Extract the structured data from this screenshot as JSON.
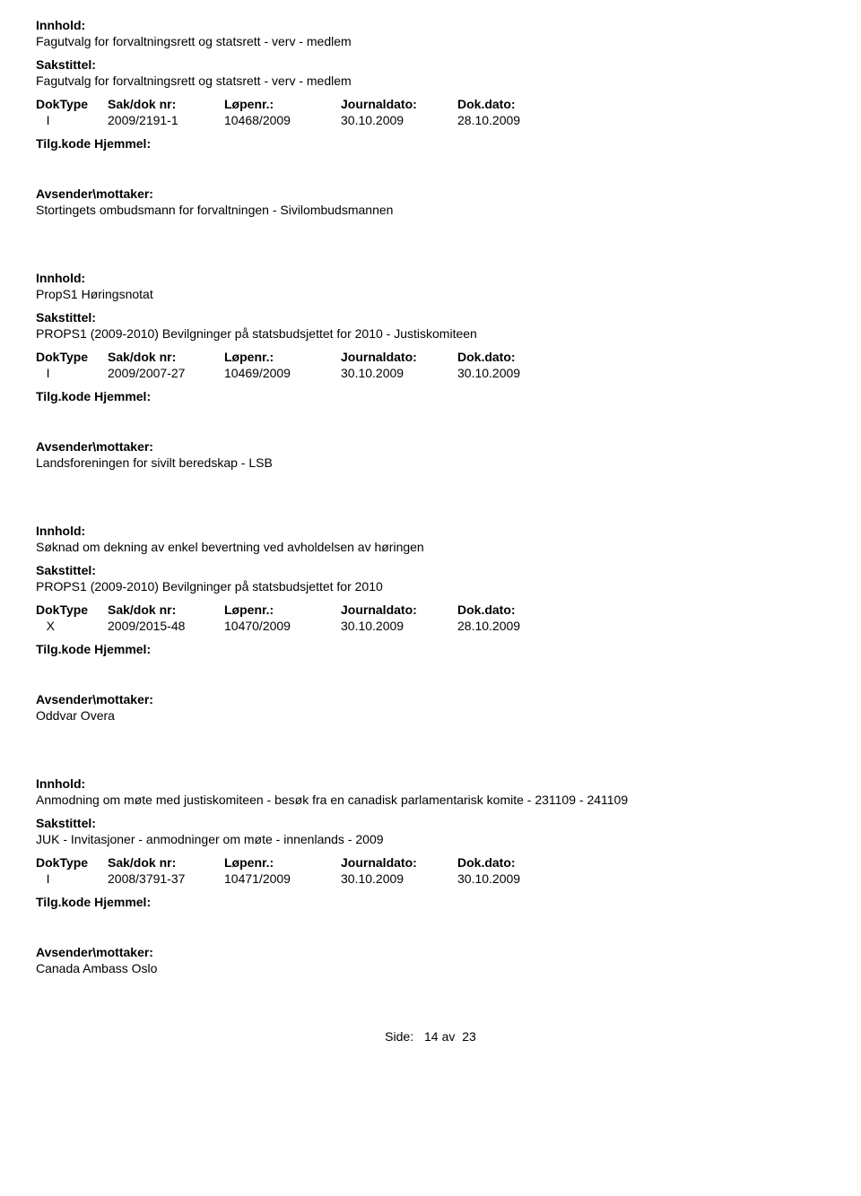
{
  "labels": {
    "innhold": "Innhold:",
    "sakstittel": "Sakstittel:",
    "doktype": "DokType",
    "sakdoknr": "Sak/dok nr:",
    "lopenr": "Løpenr.:",
    "journaldato": "Journaldato:",
    "dokdato": "Dok.dato:",
    "tilgkode": "Tilg.kode Hjemmel:",
    "avsender": "Avsender\\mottaker:",
    "side": "Side:",
    "av": "av"
  },
  "entries": [
    {
      "innhold": "Fagutvalg for forvaltningsrett og statsrett - verv - medlem",
      "sakstittel": "Fagutvalg for forvaltningsrett og statsrett - verv - medlem",
      "doktype": "I",
      "sakdoknr": "2009/2191-1",
      "lopenr": "10468/2009",
      "journaldato": "30.10.2009",
      "dokdato": "28.10.2009",
      "avsender": "Stortingets ombudsmann for forvaltningen - Sivilombudsmannen"
    },
    {
      "innhold": "PropS1 Høringsnotat",
      "sakstittel": "PROPS1 (2009-2010) Bevilgninger på statsbudsjettet for 2010 - Justiskomiteen",
      "doktype": "I",
      "sakdoknr": "2009/2007-27",
      "lopenr": "10469/2009",
      "journaldato": "30.10.2009",
      "dokdato": "30.10.2009",
      "avsender": "Landsforeningen for sivilt beredskap - LSB"
    },
    {
      "innhold": "Søknad om dekning av enkel bevertning ved avholdelsen av høringen",
      "sakstittel": "PROPS1 (2009-2010) Bevilgninger på statsbudsjettet for 2010",
      "doktype": "X",
      "sakdoknr": "2009/2015-48",
      "lopenr": "10470/2009",
      "journaldato": "30.10.2009",
      "dokdato": "28.10.2009",
      "avsender": "Oddvar Overa"
    },
    {
      "innhold": "Anmodning om møte med justiskomiteen - besøk fra en canadisk parlamentarisk komite -  231109 - 241109",
      "sakstittel": "JUK - Invitasjoner - anmodninger om møte - innenlands - 2009",
      "doktype": "I",
      "sakdoknr": "2008/3791-37",
      "lopenr": "10471/2009",
      "journaldato": "30.10.2009",
      "dokdato": "30.10.2009",
      "avsender": "Canada Ambass Oslo"
    }
  ],
  "footer": {
    "page": "14",
    "total": "23"
  }
}
